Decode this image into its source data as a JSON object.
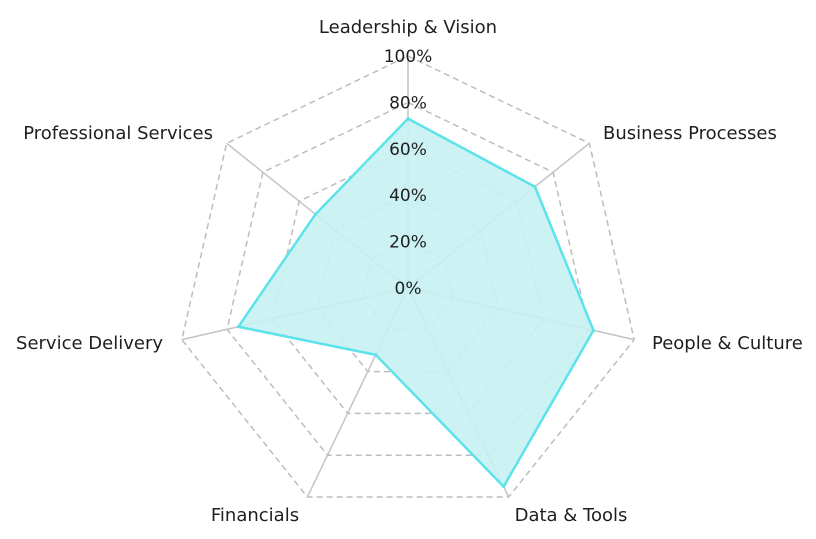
{
  "chart_data": {
    "type": "radar",
    "categories": [
      "Leadership & Vision",
      "Business Processes",
      "People & Culture",
      "Data & Tools",
      "Financials",
      "Service Delivery",
      "Professional Services"
    ],
    "series": [
      {
        "values": [
          73,
          70,
          82,
          95,
          32,
          75,
          51
        ]
      }
    ],
    "rlim": [
      0,
      100
    ],
    "ticks": [
      "0%",
      "20%",
      "40%",
      "60%",
      "80%",
      "100%"
    ],
    "tick_values": [
      0,
      20,
      40,
      60,
      80,
      100
    ],
    "grid": true,
    "colors": {
      "fill": "#c6f1f3",
      "stroke": "#5ce3ea",
      "grid": "#bdbdbd",
      "spokes": "#c4c4c4"
    }
  }
}
